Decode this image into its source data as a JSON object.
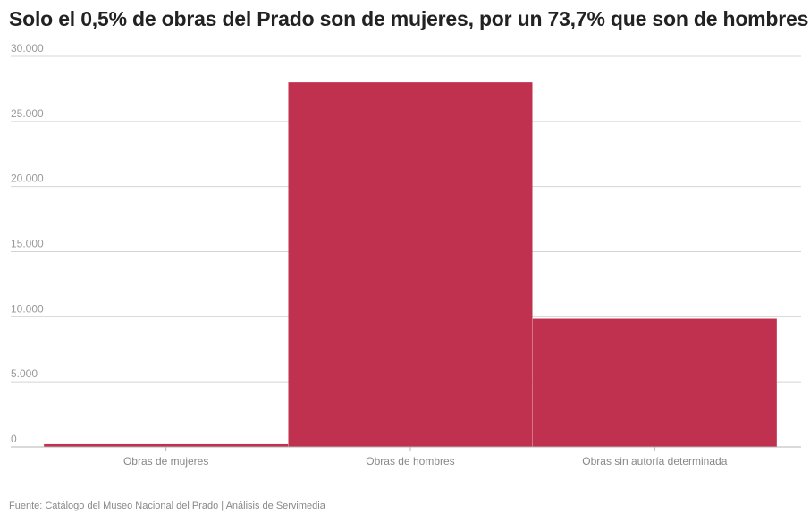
{
  "chart_data": {
    "type": "bar",
    "title": "Solo el 0,5% de obras del Prado son de mujeres, por un 73,7% que son de hombres",
    "categories": [
      "Obras de mujeres",
      "Obras de hombres",
      "Obras sin autoría determinada"
    ],
    "values": [
      210,
      28000,
      9850
    ],
    "ylim": [
      0,
      30000
    ],
    "yticks": [
      0,
      5000,
      10000,
      15000,
      20000,
      25000,
      30000
    ],
    "ytick_labels": [
      "0",
      "5.000",
      "10.000",
      "15.000",
      "20.000",
      "25.000",
      "30.000"
    ],
    "xlabel": "",
    "ylabel": "",
    "grid": true,
    "legend": "none",
    "bar_color": "#c0304f",
    "source": "Fuente: Catálogo del Museo Nacional del Prado | Análisis de Servimedia"
  }
}
